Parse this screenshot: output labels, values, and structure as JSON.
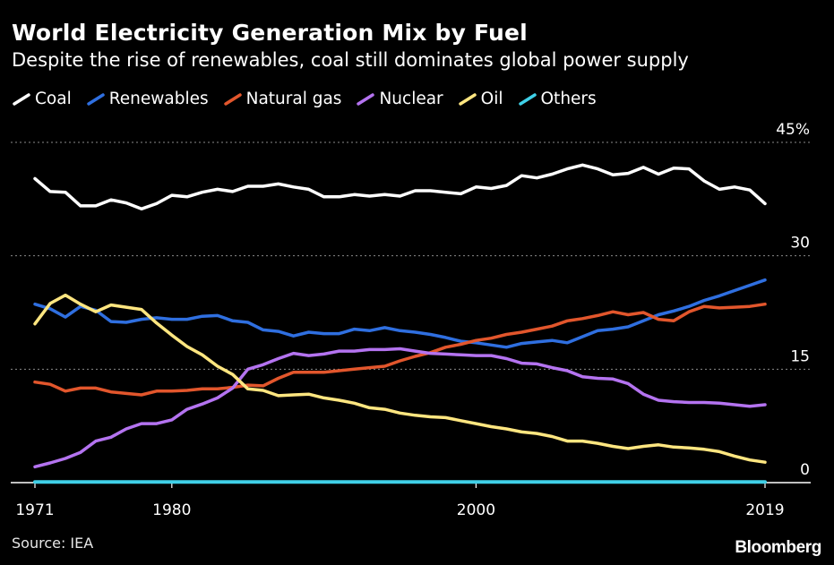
{
  "title": "World Electricity Generation Mix by Fuel",
  "subtitle": "Despite the rise of renewables, coal still dominates global power supply",
  "source": "Source: IEA",
  "brand": "Bloomberg",
  "chart_data": {
    "type": "line",
    "title": "World Electricity Generation Mix by Fuel",
    "xlabel": "",
    "ylabel": "",
    "xlim": [
      1971,
      2019
    ],
    "ylim": [
      0,
      45
    ],
    "y_ticks": [
      0,
      15,
      30,
      45
    ],
    "y_tick_labels": [
      "0",
      "15",
      "30",
      "45%"
    ],
    "x_ticks": [
      1971,
      1980,
      2000,
      2019
    ],
    "x_tick_labels": [
      "1971",
      "1980",
      "2000",
      "2019"
    ],
    "grid": "horizontal dotted",
    "legend_position": "top",
    "x": [
      1971,
      1972,
      1973,
      1974,
      1975,
      1976,
      1977,
      1978,
      1979,
      1980,
      1981,
      1982,
      1983,
      1984,
      1985,
      1986,
      1987,
      1988,
      1989,
      1990,
      1991,
      1992,
      1993,
      1994,
      1995,
      1996,
      1997,
      1998,
      1999,
      2000,
      2001,
      2002,
      2003,
      2004,
      2005,
      2006,
      2007,
      2008,
      2009,
      2010,
      2011,
      2012,
      2013,
      2014,
      2015,
      2016,
      2017,
      2018,
      2019
    ],
    "series": [
      {
        "name": "Coal",
        "color": "#ffffff",
        "values": [
          40.2,
          38.5,
          38.4,
          36.6,
          36.6,
          37.4,
          37.0,
          36.2,
          36.9,
          38.0,
          37.8,
          38.4,
          38.8,
          38.5,
          39.2,
          39.2,
          39.5,
          39.1,
          38.8,
          37.8,
          37.8,
          38.1,
          37.9,
          38.1,
          37.9,
          38.6,
          38.6,
          38.4,
          38.2,
          39.1,
          38.9,
          39.3,
          40.6,
          40.3,
          40.8,
          41.5,
          42.0,
          41.5,
          40.7,
          40.9,
          41.7,
          40.8,
          41.6,
          41.5,
          39.9,
          38.8,
          39.1,
          38.7,
          36.9
        ]
      },
      {
        "name": "Renewables",
        "color": "#2f6fe0",
        "values": [
          23.6,
          23.0,
          21.9,
          23.3,
          22.8,
          21.3,
          21.2,
          21.6,
          21.8,
          21.6,
          21.6,
          22.0,
          22.1,
          21.4,
          21.2,
          20.2,
          20.0,
          19.4,
          19.9,
          19.7,
          19.7,
          20.3,
          20.1,
          20.5,
          20.1,
          19.9,
          19.6,
          19.2,
          18.7,
          18.5,
          18.2,
          17.9,
          18.4,
          18.6,
          18.8,
          18.5,
          19.3,
          20.1,
          20.3,
          20.6,
          21.4,
          22.2,
          22.7,
          23.3,
          24.1,
          24.7,
          25.4,
          26.1,
          26.8
        ]
      },
      {
        "name": "Natural gas",
        "color": "#e2562c",
        "values": [
          13.3,
          13.0,
          12.1,
          12.5,
          12.5,
          12.0,
          11.8,
          11.6,
          12.1,
          12.1,
          12.2,
          12.4,
          12.4,
          12.6,
          12.9,
          12.8,
          13.8,
          14.6,
          14.6,
          14.6,
          14.8,
          15.0,
          15.2,
          15.4,
          16.1,
          16.7,
          17.2,
          17.9,
          18.3,
          18.8,
          19.1,
          19.6,
          19.9,
          20.3,
          20.7,
          21.4,
          21.7,
          22.1,
          22.6,
          22.2,
          22.5,
          21.6,
          21.4,
          22.6,
          23.3,
          23.1,
          23.2,
          23.3,
          23.6
        ]
      },
      {
        "name": "Nuclear",
        "color": "#b473f0",
        "values": [
          2.1,
          2.6,
          3.2,
          4.0,
          5.5,
          6.0,
          7.1,
          7.8,
          7.8,
          8.3,
          9.7,
          10.4,
          11.2,
          12.5,
          15.0,
          15.6,
          16.4,
          17.1,
          16.8,
          17.0,
          17.4,
          17.4,
          17.6,
          17.6,
          17.7,
          17.4,
          17.1,
          17.0,
          16.9,
          16.8,
          16.8,
          16.4,
          15.8,
          15.7,
          15.2,
          14.8,
          14.0,
          13.8,
          13.7,
          13.1,
          11.7,
          10.9,
          10.7,
          10.6,
          10.6,
          10.5,
          10.3,
          10.1,
          10.3
        ]
      },
      {
        "name": "Oil",
        "color": "#ffe680",
        "values": [
          21.0,
          23.7,
          24.8,
          23.6,
          22.6,
          23.5,
          23.2,
          22.9,
          21.1,
          19.5,
          18.0,
          16.9,
          15.4,
          14.3,
          12.4,
          12.2,
          11.5,
          11.6,
          11.7,
          11.2,
          10.9,
          10.5,
          9.9,
          9.7,
          9.2,
          8.9,
          8.7,
          8.6,
          8.2,
          7.8,
          7.4,
          7.1,
          6.7,
          6.5,
          6.1,
          5.5,
          5.5,
          5.2,
          4.8,
          4.5,
          4.8,
          5.0,
          4.7,
          4.6,
          4.4,
          4.1,
          3.5,
          3.0,
          2.7
        ]
      },
      {
        "name": "Others",
        "color": "#3fd0e8",
        "values": [
          0.1,
          0.1,
          0.1,
          0.1,
          0.1,
          0.1,
          0.1,
          0.1,
          0.1,
          0.1,
          0.1,
          0.1,
          0.1,
          0.1,
          0.1,
          0.1,
          0.1,
          0.1,
          0.1,
          0.1,
          0.1,
          0.1,
          0.1,
          0.1,
          0.1,
          0.1,
          0.1,
          0.1,
          0.1,
          0.1,
          0.1,
          0.1,
          0.1,
          0.1,
          0.1,
          0.1,
          0.1,
          0.1,
          0.1,
          0.1,
          0.1,
          0.1,
          0.1,
          0.1,
          0.1,
          0.1,
          0.1,
          0.1,
          0.1
        ]
      }
    ]
  }
}
